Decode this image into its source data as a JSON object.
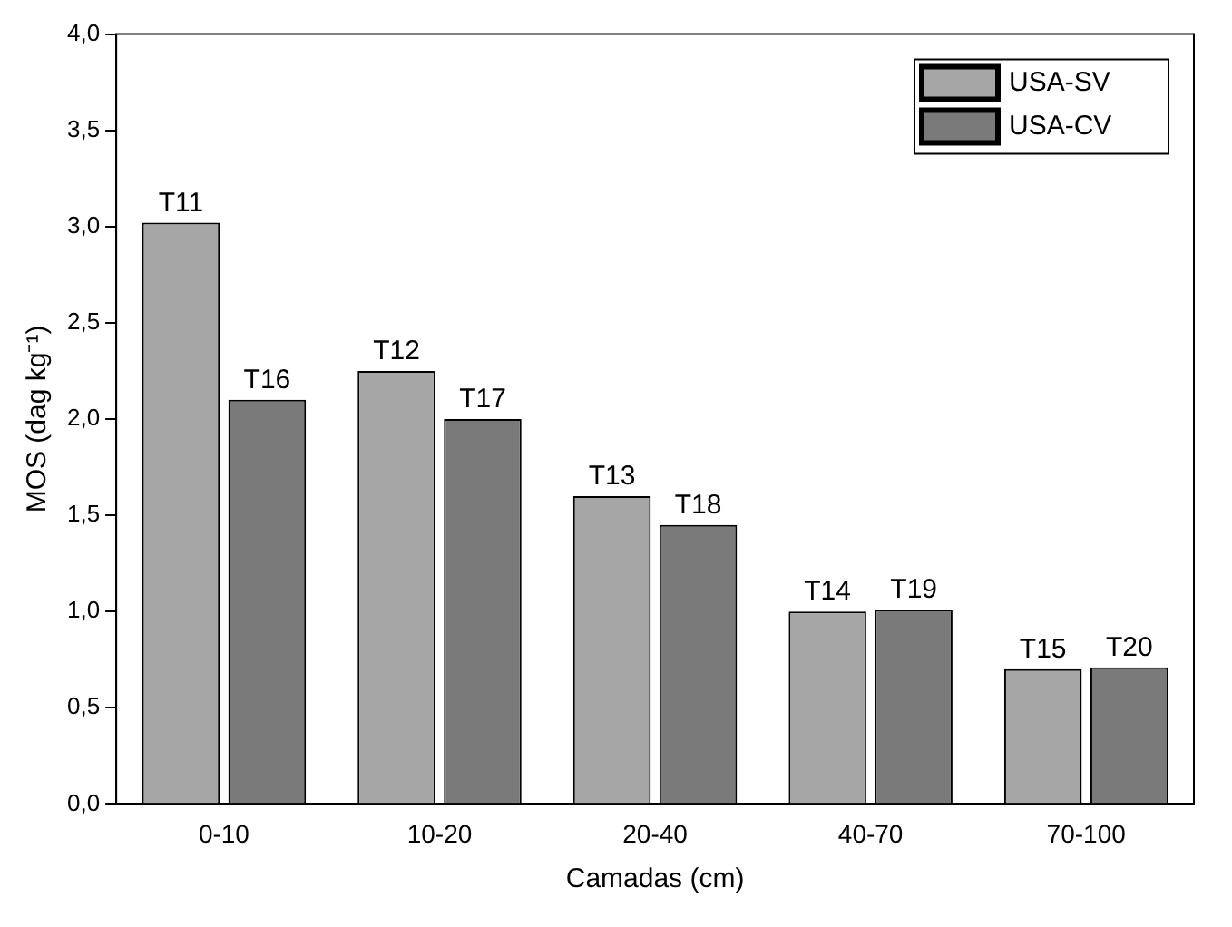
{
  "chart_data": {
    "type": "bar",
    "xlabel": "Camadas (cm)",
    "ylabel": "MOS (dag kg⁻¹)",
    "categories": [
      "0-10",
      "10-20",
      "20-40",
      "40-70",
      "70-100"
    ],
    "series": [
      {
        "name": "USA-SV",
        "color": "#a6a6a6",
        "values": [
          3.02,
          2.25,
          1.6,
          1.0,
          0.7
        ],
        "value_labels": [
          "T11",
          "T12",
          "T13",
          "T14",
          "T15"
        ]
      },
      {
        "name": "USA-CV",
        "color": "#7a7a7a",
        "values": [
          2.1,
          2.0,
          1.45,
          1.01,
          0.71
        ],
        "value_labels": [
          "T16",
          "T17",
          "T18",
          "T19",
          "T20"
        ]
      }
    ],
    "ylim": [
      0,
      4
    ],
    "yticks": [
      {
        "value": 0,
        "label": "0,0"
      },
      {
        "value": 0.5,
        "label": "0,5"
      },
      {
        "value": 1,
        "label": "1,0"
      },
      {
        "value": 1.5,
        "label": "1,5"
      },
      {
        "value": 2,
        "label": "2,0"
      },
      {
        "value": 2.5,
        "label": "2,5"
      },
      {
        "value": 3,
        "label": "3,0"
      },
      {
        "value": 3.5,
        "label": "3,5"
      },
      {
        "value": 4,
        "label": "4,0"
      }
    ],
    "grid": false,
    "legend": "top right"
  }
}
